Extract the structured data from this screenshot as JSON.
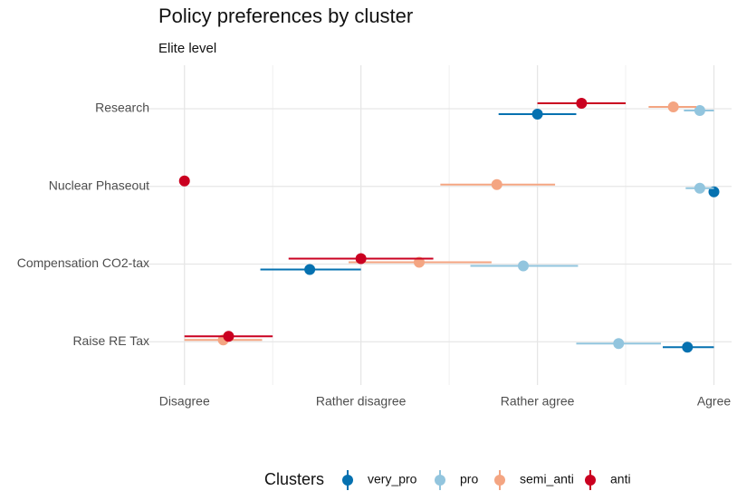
{
  "chart_data": {
    "type": "dot_errorbar",
    "title": "Policy preferences by cluster",
    "subtitle": "Elite level",
    "categories": [
      "Research",
      "Nuclear Phaseout",
      "Compensation CO2-tax",
      "Raise RE Tax"
    ],
    "legend_title": "Clusters",
    "legend_position": "bottom",
    "grid": true,
    "xlim": [
      0.75,
      4.1
    ],
    "xticks": [
      {
        "value": 1,
        "label": "Disagree"
      },
      {
        "value": 2,
        "label": "Rather disagree"
      },
      {
        "value": 3,
        "label": "Rather agree"
      },
      {
        "value": 4,
        "label": "Agree"
      }
    ],
    "minor_xticks": [
      1.5,
      2.5,
      3.5
    ],
    "series": [
      {
        "name": "very_pro",
        "color": "#0571b0",
        "values": [
          3.0,
          4.0,
          1.71,
          3.85
        ],
        "lower": [
          2.78,
          null,
          1.43,
          3.71
        ],
        "upper": [
          3.22,
          null,
          2.0,
          4.0
        ]
      },
      {
        "name": "pro",
        "color": "#92c5de",
        "values": [
          3.92,
          3.92,
          2.92,
          3.46
        ],
        "lower": [
          3.83,
          3.84,
          2.62,
          3.22
        ],
        "upper": [
          4.0,
          4.0,
          3.23,
          3.7
        ]
      },
      {
        "name": "semi_anti",
        "color": "#f4a582",
        "values": [
          3.77,
          2.77,
          2.33,
          1.22
        ],
        "lower": [
          3.63,
          2.45,
          1.93,
          1.0
        ],
        "upper": [
          3.9,
          3.1,
          2.74,
          1.44
        ]
      },
      {
        "name": "anti",
        "color": "#ca0020",
        "values": [
          3.25,
          1.0,
          2.0,
          1.25
        ],
        "lower": [
          3.0,
          null,
          1.59,
          1.0
        ],
        "upper": [
          3.5,
          null,
          2.41,
          1.5
        ]
      }
    ]
  }
}
